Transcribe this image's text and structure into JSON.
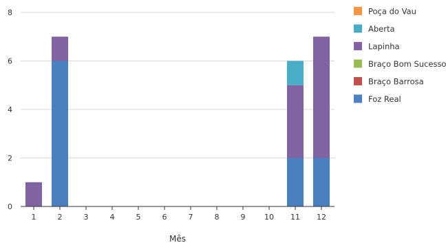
{
  "chart_data": {
    "type": "bar",
    "stacked": true,
    "xlabel": "Mês",
    "ylabel": "",
    "ylim": [
      0,
      8
    ],
    "yticks": [
      0,
      2,
      4,
      6,
      8
    ],
    "grid": "horizontal",
    "legend_position": "right",
    "categories": [
      "1",
      "2",
      "3",
      "4",
      "5",
      "6",
      "7",
      "8",
      "9",
      "10",
      "11",
      "12"
    ],
    "series": [
      {
        "name": "Foz Real",
        "color": "#4a80bd",
        "values": [
          0,
          6,
          0,
          0,
          0,
          0,
          0,
          0,
          0,
          0,
          2,
          2
        ]
      },
      {
        "name": "Braço Barrosa",
        "color": "#c0504d",
        "values": [
          0,
          0,
          0,
          0,
          0,
          0,
          0,
          0,
          0,
          0,
          0,
          0
        ]
      },
      {
        "name": "Braço Bom Sucesso",
        "color": "#9bbb59",
        "values": [
          0,
          0,
          0,
          0,
          0,
          0,
          0,
          0,
          0,
          0,
          0,
          0
        ]
      },
      {
        "name": "Lapinha",
        "color": "#8064a2",
        "values": [
          1,
          1,
          0,
          0,
          0,
          0,
          0,
          0,
          0,
          0,
          3,
          5
        ]
      },
      {
        "name": "Aberta",
        "color": "#4bacc6",
        "values": [
          0,
          0,
          0,
          0,
          0,
          0,
          0,
          0,
          0,
          0,
          1,
          0
        ]
      },
      {
        "name": "Poça do Vau",
        "color": "#f79646",
        "values": [
          0,
          0,
          0,
          0,
          0,
          0,
          0,
          0,
          0,
          0,
          0,
          0
        ]
      }
    ]
  }
}
